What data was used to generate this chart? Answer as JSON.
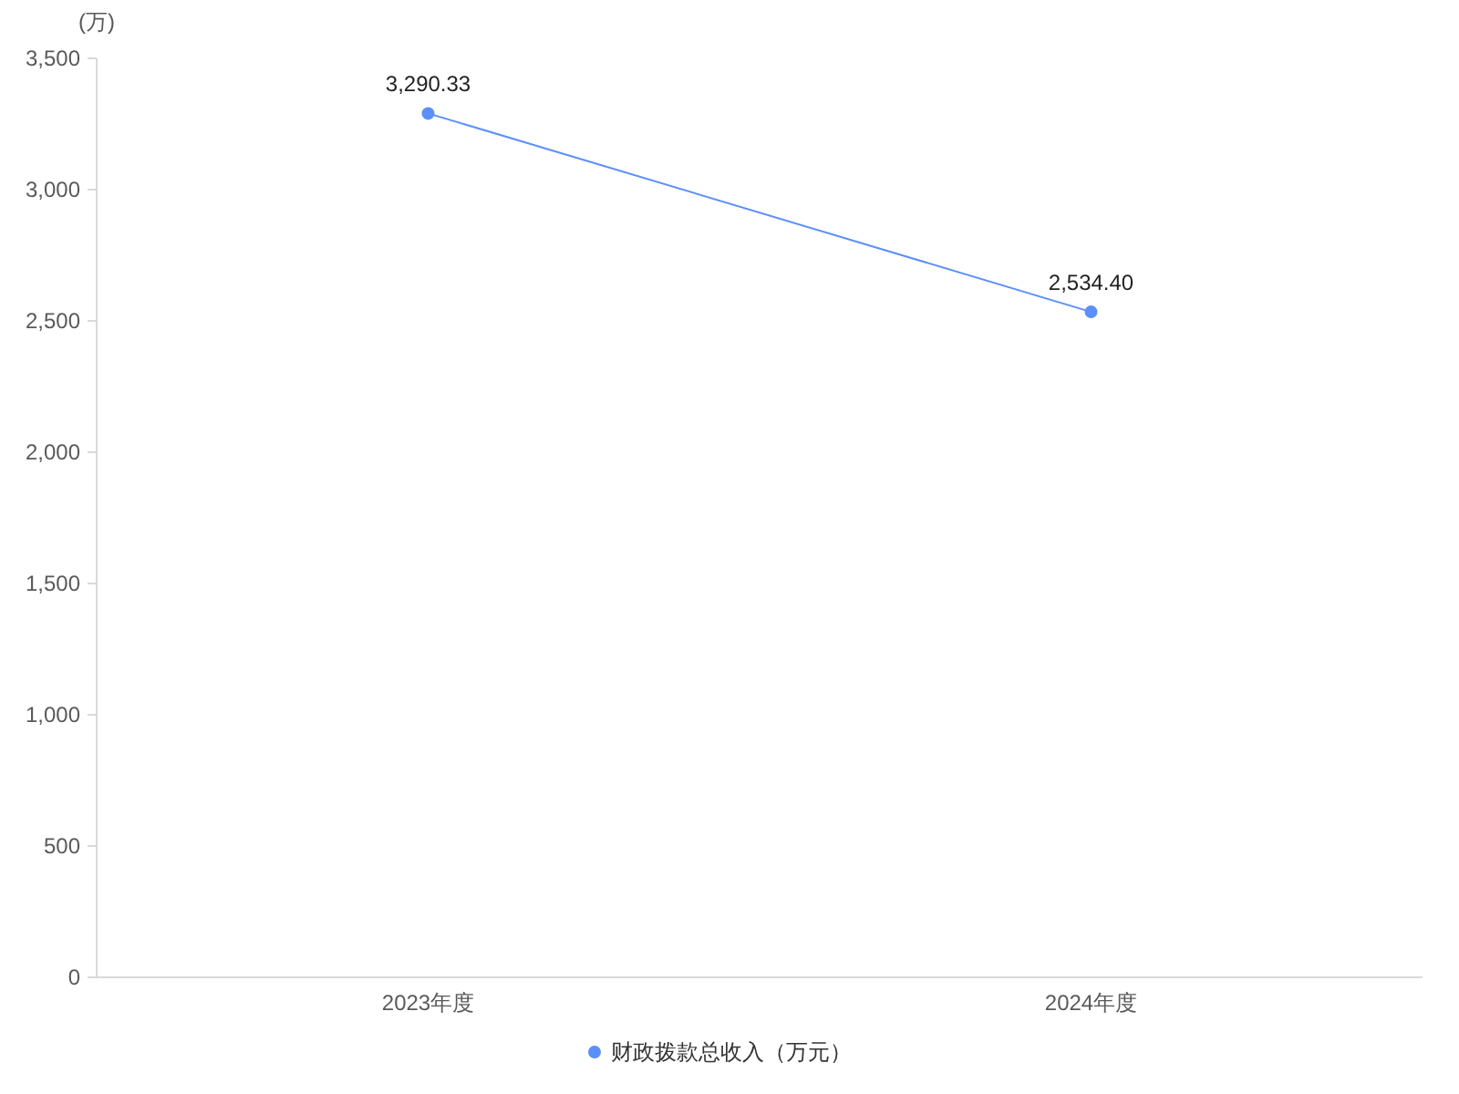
{
  "chart_data": {
    "type": "line",
    "ylabel": "(万)",
    "categories": [
      "2023年度",
      "2024年度"
    ],
    "series": [
      {
        "name": "财政拨款总收入（万元）",
        "color": "#5b8ff9",
        "values": [
          3290.33,
          2534.4
        ],
        "value_labels": [
          "3,290.33",
          "2,534.40"
        ]
      }
    ],
    "ylim": [
      0,
      3500
    ],
    "yticks": [
      0,
      500,
      {
        "value": 1000,
        "label": "1,000"
      },
      {
        "value": 1500,
        "label": "1,500"
      },
      {
        "value": 2000,
        "label": "2,000"
      },
      {
        "value": 2500,
        "label": "2,500"
      },
      {
        "value": 3000,
        "label": "3,000"
      },
      {
        "value": 3500,
        "label": "3,500"
      }
    ],
    "legend": "bottom",
    "marker": "circle"
  }
}
